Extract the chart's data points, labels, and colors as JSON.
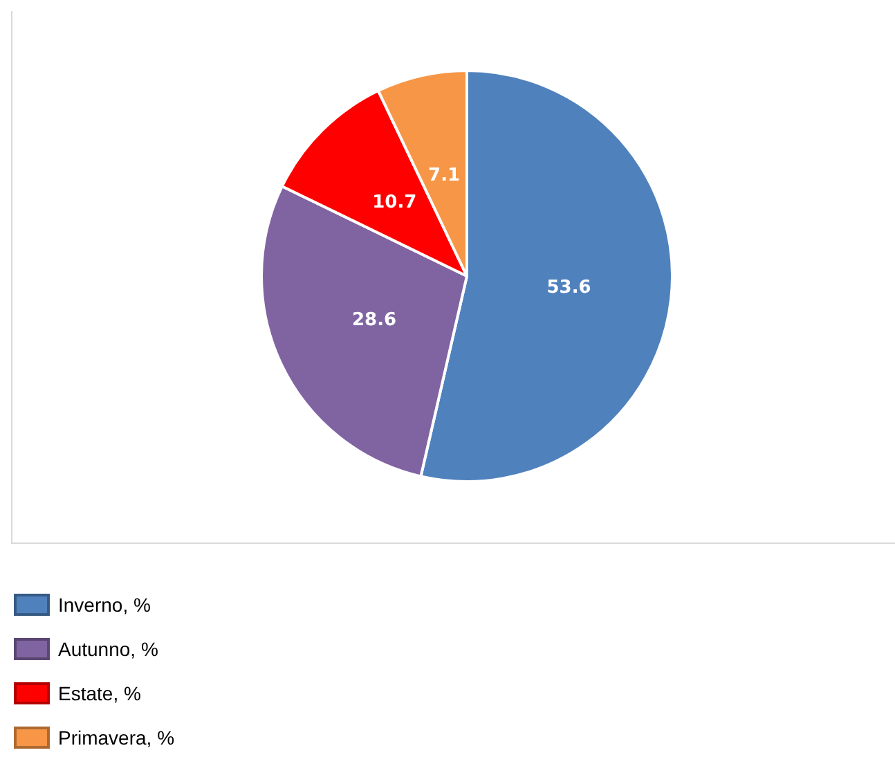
{
  "chart_data": {
    "type": "pie",
    "categories": [
      "Inverno, %",
      "Autunno, %",
      "Estate, %",
      "Primavera, %"
    ],
    "values": [
      53.6,
      28.6,
      10.7,
      7.1
    ],
    "colors": [
      "#4f81bd",
      "#8064a2",
      "#ff0000",
      "#f79646"
    ],
    "data_labels": true,
    "legend": "bottom"
  }
}
